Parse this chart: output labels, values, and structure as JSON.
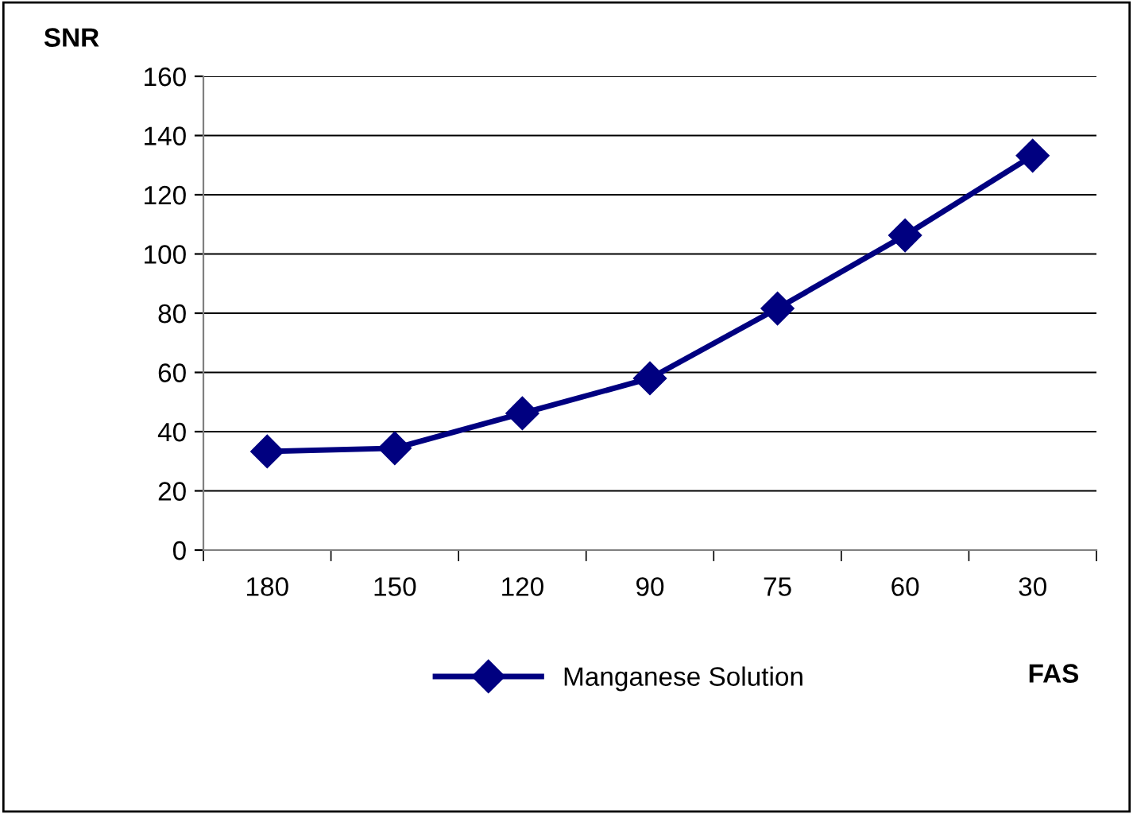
{
  "chart_data": {
    "type": "line",
    "xlabel": "FAS",
    "ylabel": "SNR",
    "categories": [
      "180",
      "150",
      "120",
      "90",
      "75",
      "60",
      "30"
    ],
    "series": [
      {
        "name": "Manganese Solution",
        "color": "#000080",
        "values": [
          33.3,
          34.4,
          46.2,
          58,
          81.6,
          106.3,
          133.2
        ]
      }
    ],
    "ylim": [
      0,
      160
    ],
    "yticks": [
      0,
      20,
      40,
      60,
      80,
      100,
      120,
      140,
      160
    ],
    "grid": "y",
    "legend": "bottom",
    "marker": "diamond",
    "line_style": "solid"
  }
}
